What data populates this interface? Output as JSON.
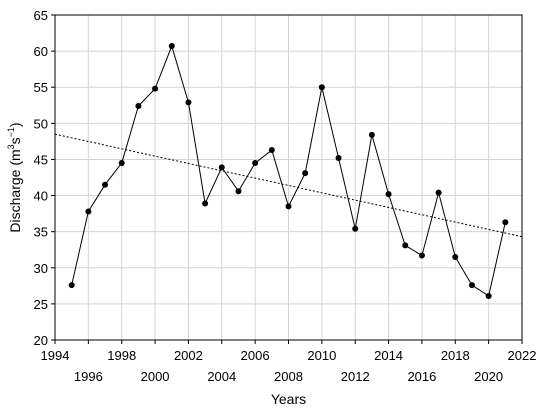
{
  "chart_data": {
    "type": "line",
    "title": "",
    "xlabel": "Years",
    "ylabel": {
      "prefix": "Discharge (m",
      "sup1": "3",
      "middle": "s",
      "sup2": "−1",
      "suffix": ")"
    },
    "xlim": [
      1994,
      2022
    ],
    "ylim": [
      20,
      65
    ],
    "xticks": [
      1994,
      1996,
      1998,
      2000,
      2002,
      2004,
      2006,
      2008,
      2010,
      2012,
      2014,
      2016,
      2018,
      2020,
      2022
    ],
    "xtick_labels": [
      "1994",
      "1996",
      "1998",
      "2000",
      "2002",
      "2004",
      "2006",
      "2008",
      "2010",
      "2012",
      "2014",
      "2016",
      "2018",
      "2020",
      "2022"
    ],
    "yticks": [
      20,
      25,
      30,
      35,
      40,
      45,
      50,
      55,
      60,
      65
    ],
    "ytick_labels": [
      "20",
      "25",
      "30",
      "35",
      "40",
      "45",
      "50",
      "55",
      "60",
      "65"
    ],
    "grid": true,
    "series": [
      {
        "x": [
          1995,
          1996,
          1997,
          1998,
          1999,
          2000,
          2001,
          2002,
          2003,
          2004,
          2005,
          2006,
          2007,
          2008,
          2009,
          2010,
          2011,
          2012,
          2013,
          2014,
          2015,
          2016,
          2017,
          2018,
          2019,
          2020,
          2021
        ],
        "y": [
          27.6,
          37.8,
          41.5,
          44.5,
          52.4,
          54.8,
          60.7,
          52.9,
          38.9,
          43.9,
          40.6,
          44.5,
          46.3,
          38.5,
          43.1,
          55.0,
          45.2,
          35.4,
          48.4,
          40.2,
          33.1,
          31.7,
          40.4,
          31.5,
          27.6,
          26.1,
          36.3
        ],
        "style": "solid",
        "marker": "circle",
        "color": "#000000"
      }
    ],
    "trendline": {
      "x": [
        1994,
        2022
      ],
      "y": [
        48.5,
        34.3
      ],
      "style": "dotted",
      "color": "#000000"
    }
  }
}
